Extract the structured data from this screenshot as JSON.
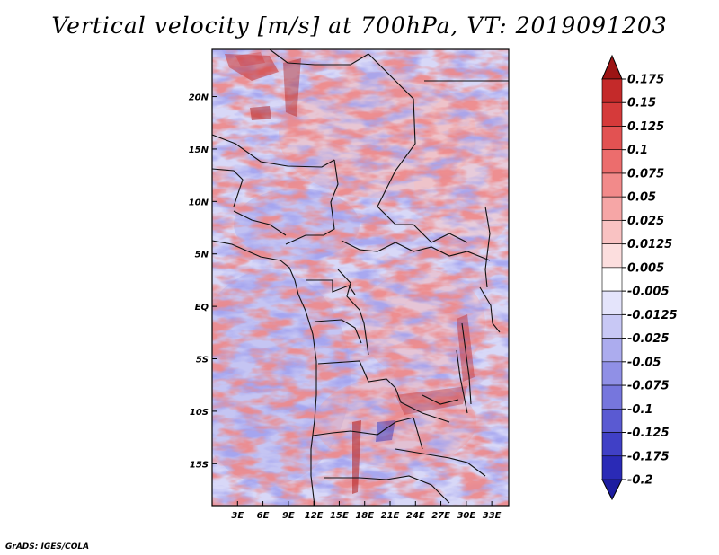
{
  "title": "Vertical velocity [m/s] at 700hPa, VT: 2019091203",
  "footer": "GrADS: IGES/COLA",
  "map": {
    "variable": "Vertical velocity",
    "units": "m/s",
    "level": "700hPa",
    "valid_time": "2019091203",
    "lon_range": [
      0,
      35
    ],
    "lat_range": [
      -19,
      24.5
    ],
    "x_ticks": [
      {
        "value": 3,
        "label": "3E"
      },
      {
        "value": 6,
        "label": "6E"
      },
      {
        "value": 9,
        "label": "9E"
      },
      {
        "value": 12,
        "label": "12E"
      },
      {
        "value": 15,
        "label": "15E"
      },
      {
        "value": 18,
        "label": "18E"
      },
      {
        "value": 21,
        "label": "21E"
      },
      {
        "value": 24,
        "label": "24E"
      },
      {
        "value": 27,
        "label": "27E"
      },
      {
        "value": 30,
        "label": "30E"
      },
      {
        "value": 33,
        "label": "33E"
      }
    ],
    "y_ticks": [
      {
        "value": 20,
        "label": "20N"
      },
      {
        "value": 15,
        "label": "15N"
      },
      {
        "value": 10,
        "label": "10N"
      },
      {
        "value": 5,
        "label": "5N"
      },
      {
        "value": 0,
        "label": "EQ"
      },
      {
        "value": -5,
        "label": "5S"
      },
      {
        "value": -10,
        "label": "10S"
      },
      {
        "value": -15,
        "label": "15S"
      }
    ]
  },
  "colorbar": {
    "levels": [
      {
        "label": "0.175",
        "color": "#b01c1c"
      },
      {
        "label": "0.15",
        "color": "#c42a2a"
      },
      {
        "label": "0.125",
        "color": "#d53a3a"
      },
      {
        "label": "0.1",
        "color": "#e25252"
      },
      {
        "label": "0.075",
        "color": "#ec6d6d"
      },
      {
        "label": "0.05",
        "color": "#f28a8a"
      },
      {
        "label": "0.025",
        "color": "#f6a6a6"
      },
      {
        "label": "0.0125",
        "color": "#f9c2c2"
      },
      {
        "label": "0.005",
        "color": "#fcdede"
      },
      {
        "label": "-0.005",
        "color": "#ffffff"
      },
      {
        "label": "-0.0125",
        "color": "#e4e4fb"
      },
      {
        "label": "-0.025",
        "color": "#c8c8f5"
      },
      {
        "label": "-0.05",
        "color": "#acacee"
      },
      {
        "label": "-0.075",
        "color": "#9090e6"
      },
      {
        "label": "-0.1",
        "color": "#7676dd"
      },
      {
        "label": "-0.125",
        "color": "#5a5ad2"
      },
      {
        "label": "-0.175",
        "color": "#4040c6"
      },
      {
        "label": "-0.2",
        "color": "#2a2ab6"
      }
    ],
    "top_arrow_color": "#9c1414",
    "bottom_arrow_color": "#1c1ca0"
  }
}
